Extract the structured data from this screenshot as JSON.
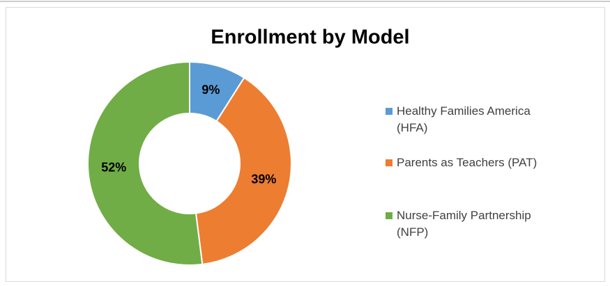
{
  "chart_data": {
    "type": "pie",
    "title": "Enrollment by Model",
    "categories": [
      "Healthy Families America (HFA)",
      "Parents as Teachers (PAT)",
      "Nurse-Family Partnership (NFP)"
    ],
    "values": [
      9,
      39,
      52
    ],
    "value_labels": [
      "9%",
      "39%",
      "52%"
    ],
    "colors": [
      "#5b9bd5",
      "#ed7d31",
      "#70ad47"
    ],
    "legend": "right"
  }
}
